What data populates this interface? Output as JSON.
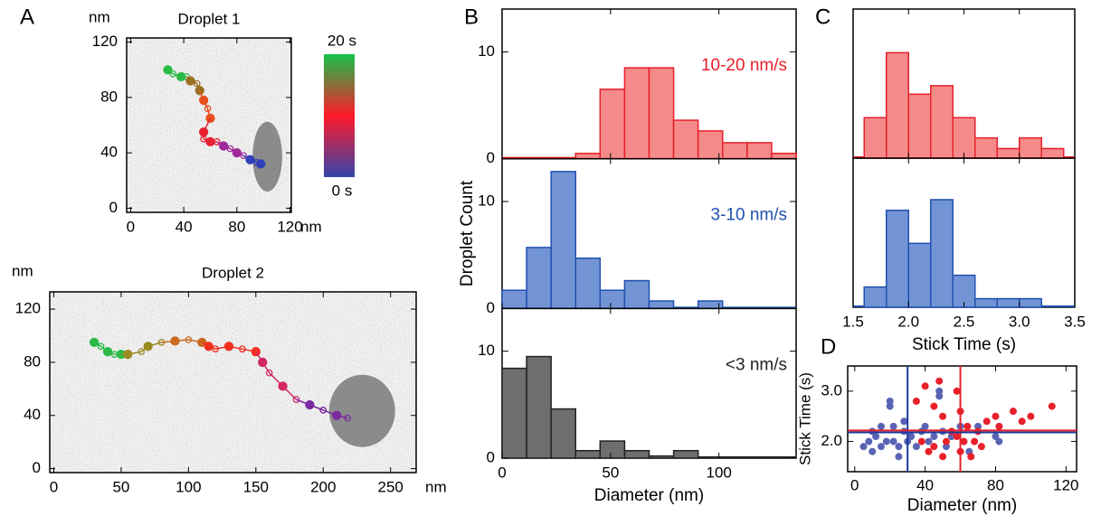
{
  "chart_data": [
    {
      "type": "trajectory",
      "panel": "A",
      "title": "Droplet 1",
      "xlim": [
        -3,
        121
      ],
      "ylim": [
        -3,
        123
      ],
      "xticks": [
        0,
        40,
        80,
        120
      ],
      "yticks": [
        0,
        40,
        80,
        120
      ],
      "xunit": "nm",
      "yunit": "nm",
      "series": [
        {
          "color": "#2dbb48",
          "x": [
            28,
            32,
            38,
            42
          ],
          "y": [
            100,
            97,
            95,
            95
          ]
        },
        {
          "color": "#9a7020",
          "x": [
            45,
            50,
            52
          ],
          "y": [
            92,
            90,
            85
          ]
        },
        {
          "color": "#e8501e",
          "x": [
            55,
            58,
            60
          ],
          "y": [
            78,
            72,
            65
          ]
        },
        {
          "color": "#e82030",
          "x": [
            55,
            55,
            60,
            65
          ],
          "y": [
            55,
            50,
            48,
            48
          ]
        },
        {
          "color": "#a02a9a",
          "x": [
            70,
            75,
            80,
            85
          ],
          "y": [
            45,
            43,
            40,
            38
          ]
        },
        {
          "color": "#3040b8",
          "x": [
            90,
            95,
            98
          ],
          "y": [
            35,
            33,
            32
          ]
        }
      ],
      "colorbar": {
        "colors": [
          "#15c24a",
          "#ff1a2a",
          "#3344aa"
        ],
        "top_label": "20 s",
        "bottom_label": "0 s"
      }
    },
    {
      "type": "trajectory",
      "title": "Droplet 2",
      "xlim": [
        -3,
        269
      ],
      "ylim": [
        -3,
        133
      ],
      "xticks": [
        0,
        50,
        100,
        150,
        200,
        250
      ],
      "yticks": [
        0,
        40,
        80,
        120
      ],
      "xunit": "nm",
      "yunit": "nm",
      "series": [
        {
          "color": "#2dbb48",
          "x": [
            30,
            35,
            40,
            45,
            50
          ],
          "y": [
            95,
            92,
            88,
            86,
            86
          ]
        },
        {
          "color": "#9a8a20",
          "x": [
            55,
            65,
            70,
            80
          ],
          "y": [
            86,
            88,
            92,
            95
          ]
        },
        {
          "color": "#c86a20",
          "x": [
            90,
            100,
            110
          ],
          "y": [
            96,
            97,
            95
          ]
        },
        {
          "color": "#f03020",
          "x": [
            115,
            120,
            130,
            140,
            150
          ],
          "y": [
            92,
            90,
            92,
            90,
            88
          ]
        },
        {
          "color": "#d02a60",
          "x": [
            155,
            160,
            170,
            180
          ],
          "y": [
            80,
            72,
            62,
            52
          ]
        },
        {
          "color": "#7a2aa0",
          "x": [
            190,
            200,
            210,
            218
          ],
          "y": [
            48,
            44,
            40,
            38
          ]
        }
      ]
    },
    {
      "type": "stacked-histogram",
      "panel": "B",
      "xlabel": "Diameter (nm)",
      "ylabel": "Droplet Count",
      "bins": [
        0,
        11.3,
        22.6,
        33.9,
        45.2,
        56.5,
        67.8,
        79.1,
        90.4,
        101.7,
        113,
        124.3,
        135.6
      ],
      "xlim": [
        0,
        135.6
      ],
      "xticks": [
        0,
        50,
        100
      ],
      "ylim": [
        0,
        14
      ],
      "yticks": [
        0,
        10
      ],
      "panels": [
        {
          "label": "10-20 nm/s",
          "color": "#e8202a",
          "fill": "#f58a8a",
          "counts": [
            0,
            0,
            0,
            0.5,
            6.5,
            8.5,
            8.5,
            3.6,
            2.6,
            1.5,
            1.5,
            0.5
          ]
        },
        {
          "label": "3-10 nm/s",
          "color": "#2050b0",
          "fill": "#7394d4",
          "counts": [
            1.7,
            5.7,
            12.8,
            4.7,
            1.7,
            2.6,
            0.7,
            0,
            0.7,
            0,
            0,
            0
          ]
        },
        {
          "label": "<3 nm/s",
          "color": "#222222",
          "fill": "#6e6e6e",
          "counts": [
            8.4,
            9.5,
            4.6,
            0.7,
            1.6,
            0.7,
            0.2,
            0.7,
            0,
            0,
            0,
            0
          ]
        }
      ]
    },
    {
      "type": "stacked-histogram",
      "panel": "C",
      "xlabel": "Stick Time (s)",
      "bins": [
        1.6,
        1.8,
        2.0,
        2.2,
        2.4,
        2.6,
        2.8,
        3.0,
        3.2,
        3.4
      ],
      "xlim": [
        1.5,
        3.5
      ],
      "xticks": [
        1.5,
        {
          "value": 2,
          "label": "2.0"
        },
        2.5,
        {
          "value": 3,
          "label": "3.0"
        },
        3.5
      ],
      "ylim": [
        0,
        14
      ],
      "panels": [
        {
          "color": "#e8202a",
          "fill": "#f58a8a",
          "counts": [
            3.8,
            9.9,
            6,
            6.8,
            3.8,
            1.9,
            0.9,
            1.9,
            0.9
          ]
        },
        {
          "color": "#2050b0",
          "fill": "#7394d4",
          "counts": [
            1.9,
            9.1,
            6,
            10.1,
            3,
            0.8,
            0.8,
            0.8,
            0
          ]
        }
      ]
    },
    {
      "type": "scatter",
      "panel": "D",
      "xlabel": "Diameter (nm)",
      "ylabel": "Stick Time (s)",
      "xlim": [
        -4,
        126
      ],
      "ylim": [
        1.4,
        3.5
      ],
      "xticks": [
        0,
        40,
        80,
        120
      ],
      "yticks": [
        {
          "value": 2,
          "label": "2.0"
        },
        {
          "value": 3,
          "label": "3.0"
        }
      ],
      "series": [
        {
          "color": "#5a64b4",
          "x": [
            5,
            8,
            10,
            10,
            12,
            15,
            15,
            18,
            20,
            20,
            22,
            22,
            25,
            25,
            28,
            28,
            30,
            32,
            35,
            38,
            40,
            42,
            45,
            48,
            48,
            50,
            52,
            55,
            60,
            62,
            65,
            70,
            80,
            82
          ],
          "y": [
            1.9,
            2.0,
            2.2,
            1.8,
            2.1,
            2.3,
            1.9,
            2.0,
            2.8,
            2.7,
            2.3,
            2.0,
            1.9,
            1.7,
            2.2,
            2.4,
            2.0,
            2.1,
            1.9,
            2.2,
            2.3,
            2.0,
            2.1,
            2.9,
            3.0,
            2.2,
            1.9,
            2.1,
            2.3,
            2.0,
            1.8,
            2.3,
            2.1,
            2.0
          ]
        },
        {
          "color": "#e8202a",
          "x": [
            40,
            45,
            48,
            50,
            38,
            42,
            45,
            50,
            52,
            55,
            58,
            58,
            60,
            62,
            64,
            66,
            68,
            70,
            72,
            75,
            80,
            82,
            90,
            95,
            100,
            112,
            60,
            35
          ],
          "y": [
            3.1,
            2.7,
            3.2,
            2.5,
            2.0,
            1.8,
            1.9,
            1.7,
            2.0,
            2.2,
            3.0,
            2.1,
            1.8,
            2.0,
            2.3,
            1.7,
            2.0,
            2.2,
            1.9,
            2.4,
            2.5,
            2.3,
            2.6,
            2.4,
            2.5,
            2.7,
            2.6,
            2.8
          ]
        }
      ],
      "vlines": [
        {
          "x": 30,
          "color": "#1a3a9a"
        },
        {
          "x": 60,
          "color": "#e8202a"
        }
      ],
      "hlines": [
        {
          "y": 2.18,
          "color": "#1a3a9a"
        },
        {
          "y": 2.22,
          "color": "#e8202a"
        }
      ]
    }
  ]
}
